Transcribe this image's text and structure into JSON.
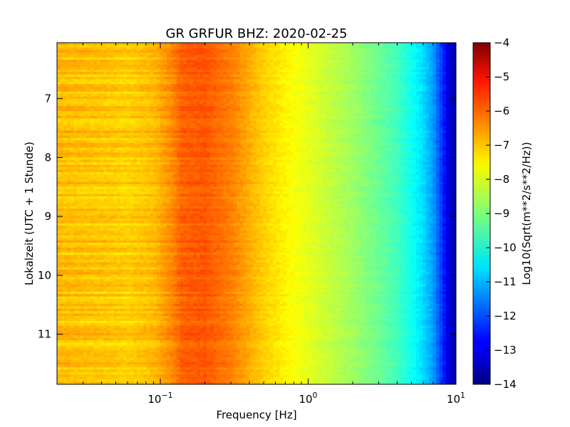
{
  "chart_data": {
    "type": "heatmap",
    "title": "GR GRFUR BHZ: 2020-02-25",
    "xlabel": "Frequency [Hz]",
    "ylabel": "Lokalzeit (UTC + 1 Stunde)",
    "x_scale": "log",
    "xlim": [
      0.02,
      10
    ],
    "ylim": [
      6.05,
      11.85
    ],
    "y_inverted": true,
    "x_ticks": [
      {
        "value": 0.1,
        "base": "10",
        "exp": "−1"
      },
      {
        "value": 1,
        "base": "10",
        "exp": "0"
      },
      {
        "value": 10,
        "base": "10",
        "exp": "1"
      }
    ],
    "y_ticks": [
      7,
      8,
      9,
      10,
      11
    ],
    "colorbar": {
      "label": "Log10(Sqrt(m**2/s**2/Hz))",
      "colormap": "jet",
      "range": [
        -14,
        -4
      ],
      "ticks": [
        "−4",
        "−5",
        "−6",
        "−7",
        "−8",
        "−9",
        "−10",
        "−11",
        "−12",
        "−13",
        "−14"
      ]
    },
    "spectrum_profile": {
      "frequency_hz": [
        0.02,
        0.04,
        0.06,
        0.09,
        0.12,
        0.14,
        0.2,
        0.3,
        0.5,
        0.8,
        1.0,
        1.5,
        2.0,
        3.0,
        4.0,
        5.0,
        6.0,
        7.0,
        8.0,
        9.0,
        10.0
      ],
      "log10_amplitude": [
        -7.1,
        -7.2,
        -7.3,
        -7.1,
        -6.6,
        -6.2,
        -6.1,
        -6.5,
        -7.3,
        -7.8,
        -8.0,
        -8.4,
        -8.7,
        -9.2,
        -9.6,
        -10.1,
        -10.6,
        -11.2,
        -12.2,
        -13.2,
        -13.6
      ]
    }
  }
}
